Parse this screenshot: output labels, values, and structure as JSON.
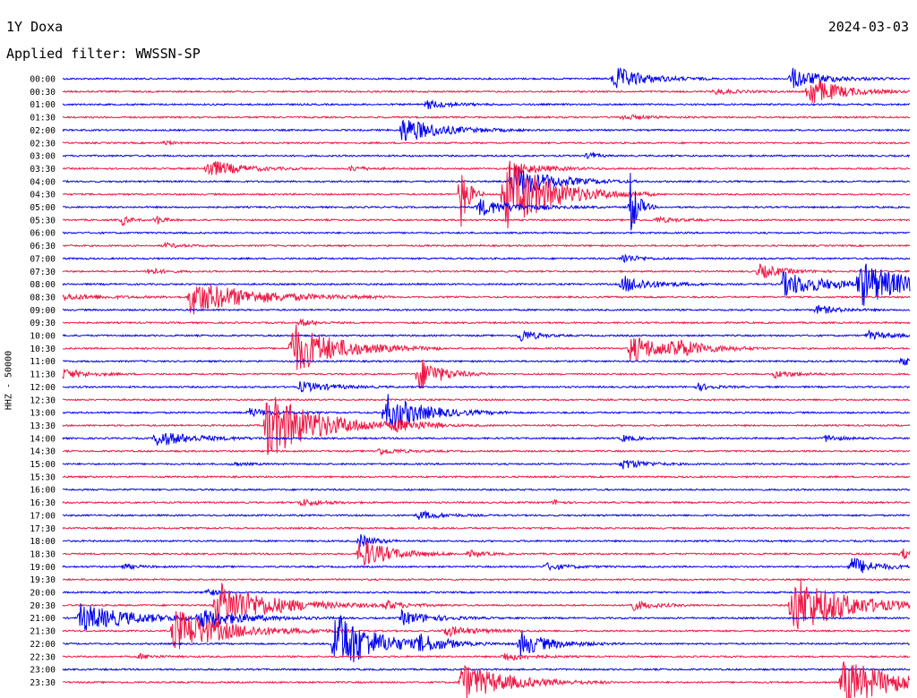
{
  "header": {
    "station": "1Y Doxa",
    "date": "2024-03-03",
    "filter": "Applied filter: WWSSN-SP"
  },
  "colors": {
    "even_trace": "#0000ee",
    "odd_trace": "#ee1744",
    "background": "#ffffff"
  },
  "chart_data": {
    "type": "line",
    "ylabel": "HHZ - 50000",
    "row_labels": [
      "00:00",
      "00:30",
      "01:00",
      "01:30",
      "02:00",
      "02:30",
      "03:00",
      "03:30",
      "04:00",
      "04:30",
      "05:00",
      "05:30",
      "06:00",
      "06:30",
      "07:00",
      "07:30",
      "08:00",
      "08:30",
      "09:00",
      "09:30",
      "10:00",
      "10:30",
      "11:00",
      "11:30",
      "12:00",
      "12:30",
      "13:00",
      "13:30",
      "14:00",
      "14:30",
      "15:00",
      "15:30",
      "16:00",
      "16:30",
      "17:00",
      "17:30",
      "18:00",
      "18:30",
      "19:00",
      "19:30",
      "20:00",
      "20:30",
      "21:00",
      "21:30",
      "22:00",
      "22:30",
      "23:00",
      "23:30"
    ],
    "trace_colors": [
      "#0000ee",
      "#ee1744"
    ],
    "events": [
      {
        "row": 0,
        "x": 0.65,
        "amp": 14,
        "dur": 0.04
      },
      {
        "row": 0,
        "x": 0.86,
        "amp": 12,
        "dur": 0.04
      },
      {
        "row": 1,
        "x": 0.88,
        "amp": 18,
        "dur": 0.04
      },
      {
        "row": 1,
        "x": 0.77,
        "amp": 3,
        "dur": 0.03
      },
      {
        "row": 2,
        "x": 0.43,
        "amp": 5,
        "dur": 0.03
      },
      {
        "row": 3,
        "x": 0.66,
        "amp": 3,
        "dur": 0.03
      },
      {
        "row": 4,
        "x": 0.4,
        "amp": 15,
        "dur": 0.05
      },
      {
        "row": 5,
        "x": 0.12,
        "amp": 3,
        "dur": 0.01
      },
      {
        "row": 6,
        "x": 0.62,
        "amp": 6,
        "dur": 0.01
      },
      {
        "row": 7,
        "x": 0.17,
        "amp": 11,
        "dur": 0.04
      },
      {
        "row": 7,
        "x": 0.34,
        "amp": 3,
        "dur": 0.02
      },
      {
        "row": 7,
        "x": 0.54,
        "amp": 6,
        "dur": 0.04
      },
      {
        "row": 8,
        "x": 0.53,
        "amp": 20,
        "dur": 0.05
      },
      {
        "row": 9,
        "x": 0.47,
        "amp": 40,
        "dur": 0.01
      },
      {
        "row": 9,
        "x": 0.52,
        "amp": 45,
        "dur": 0.06
      },
      {
        "row": 10,
        "x": 0.49,
        "amp": 10,
        "dur": 0.05
      },
      {
        "row": 10,
        "x": 0.67,
        "amp": 40,
        "dur": 0.01
      },
      {
        "row": 11,
        "x": 0.07,
        "amp": 6,
        "dur": 0.01
      },
      {
        "row": 11,
        "x": 0.11,
        "amp": 6,
        "dur": 0.01
      },
      {
        "row": 11,
        "x": 0.7,
        "amp": 3,
        "dur": 0.03
      },
      {
        "row": 13,
        "x": 0.12,
        "amp": 3,
        "dur": 0.02
      },
      {
        "row": 14,
        "x": 0.66,
        "amp": 6,
        "dur": 0.02
      },
      {
        "row": 15,
        "x": 0.82,
        "amp": 9,
        "dur": 0.03
      },
      {
        "row": 15,
        "x": 0.1,
        "amp": 4,
        "dur": 0.02
      },
      {
        "row": 16,
        "x": 0.66,
        "amp": 10,
        "dur": 0.04
      },
      {
        "row": 16,
        "x": 0.85,
        "amp": 14,
        "dur": 0.06
      },
      {
        "row": 16,
        "x": 0.94,
        "amp": 25,
        "dur": 0.06
      },
      {
        "row": 17,
        "x": 0.15,
        "amp": 20,
        "dur": 0.08
      },
      {
        "row": 17,
        "x": 0.0,
        "amp": 3,
        "dur": 0.06
      },
      {
        "row": 18,
        "x": 0.89,
        "amp": 5,
        "dur": 0.03
      },
      {
        "row": 19,
        "x": 0.28,
        "amp": 4,
        "dur": 0.02
      },
      {
        "row": 20,
        "x": 0.54,
        "amp": 8,
        "dur": 0.02
      },
      {
        "row": 20,
        "x": 0.95,
        "amp": 5,
        "dur": 0.03
      },
      {
        "row": 21,
        "x": 0.27,
        "amp": 30,
        "dur": 0.06
      },
      {
        "row": 21,
        "x": 0.67,
        "amp": 16,
        "dur": 0.05
      },
      {
        "row": 21,
        "x": 0.72,
        "amp": 8,
        "dur": 0.04
      },
      {
        "row": 22,
        "x": 0.99,
        "amp": 8,
        "dur": 0.01
      },
      {
        "row": 23,
        "x": 0.0,
        "amp": 6,
        "dur": 0.03
      },
      {
        "row": 23,
        "x": 0.42,
        "amp": 20,
        "dur": 0.03
      },
      {
        "row": 23,
        "x": 0.84,
        "amp": 4,
        "dur": 0.03
      },
      {
        "row": 24,
        "x": 0.28,
        "amp": 6,
        "dur": 0.04
      },
      {
        "row": 24,
        "x": 0.75,
        "amp": 4,
        "dur": 0.02
      },
      {
        "row": 26,
        "x": 0.22,
        "amp": 5,
        "dur": 0.03
      },
      {
        "row": 26,
        "x": 0.38,
        "amp": 22,
        "dur": 0.05
      },
      {
        "row": 27,
        "x": 0.24,
        "amp": 38,
        "dur": 0.07
      },
      {
        "row": 27,
        "x": 0.39,
        "amp": 5,
        "dur": 0.04
      },
      {
        "row": 28,
        "x": 0.11,
        "amp": 9,
        "dur": 0.05
      },
      {
        "row": 28,
        "x": 0.66,
        "amp": 4,
        "dur": 0.02
      },
      {
        "row": 28,
        "x": 0.9,
        "amp": 4,
        "dur": 0.02
      },
      {
        "row": 29,
        "x": 0.37,
        "amp": 4,
        "dur": 0.03
      },
      {
        "row": 30,
        "x": 0.66,
        "amp": 6,
        "dur": 0.03
      },
      {
        "row": 30,
        "x": 0.2,
        "amp": 2,
        "dur": 0.02
      },
      {
        "row": 33,
        "x": 0.28,
        "amp": 4,
        "dur": 0.03
      },
      {
        "row": 33,
        "x": 0.58,
        "amp": 3,
        "dur": 0.01
      },
      {
        "row": 34,
        "x": 0.42,
        "amp": 5,
        "dur": 0.03
      },
      {
        "row": 36,
        "x": 0.35,
        "amp": 8,
        "dur": 0.02
      },
      {
        "row": 37,
        "x": 0.35,
        "amp": 18,
        "dur": 0.04
      },
      {
        "row": 37,
        "x": 0.48,
        "amp": 4,
        "dur": 0.02
      },
      {
        "row": 37,
        "x": 0.99,
        "amp": 6,
        "dur": 0.02
      },
      {
        "row": 38,
        "x": 0.93,
        "amp": 12,
        "dur": 0.03
      },
      {
        "row": 38,
        "x": 0.07,
        "amp": 3,
        "dur": 0.02
      },
      {
        "row": 38,
        "x": 0.57,
        "amp": 4,
        "dur": 0.03
      },
      {
        "row": 40,
        "x": 0.17,
        "amp": 6,
        "dur": 0.01
      },
      {
        "row": 41,
        "x": 0.18,
        "amp": 28,
        "dur": 0.07
      },
      {
        "row": 41,
        "x": 0.86,
        "amp": 35,
        "dur": 0.07
      },
      {
        "row": 41,
        "x": 0.67,
        "amp": 6,
        "dur": 0.03
      },
      {
        "row": 41,
        "x": 0.38,
        "amp": 5,
        "dur": 0.03
      },
      {
        "row": 42,
        "x": 0.02,
        "amp": 16,
        "dur": 0.07
      },
      {
        "row": 42,
        "x": 0.16,
        "amp": 10,
        "dur": 0.06
      },
      {
        "row": 42,
        "x": 0.4,
        "amp": 8,
        "dur": 0.04
      },
      {
        "row": 43,
        "x": 0.13,
        "amp": 25,
        "dur": 0.07
      },
      {
        "row": 43,
        "x": 0.45,
        "amp": 6,
        "dur": 0.04
      },
      {
        "row": 44,
        "x": 0.32,
        "amp": 40,
        "dur": 0.05
      },
      {
        "row": 44,
        "x": 0.42,
        "amp": 8,
        "dur": 0.04
      },
      {
        "row": 44,
        "x": 0.54,
        "amp": 14,
        "dur": 0.04
      },
      {
        "row": 45,
        "x": 0.52,
        "amp": 5,
        "dur": 0.03
      },
      {
        "row": 45,
        "x": 0.09,
        "amp": 3,
        "dur": 0.02
      },
      {
        "row": 47,
        "x": 0.47,
        "amp": 22,
        "dur": 0.06
      },
      {
        "row": 47,
        "x": 0.92,
        "amp": 28,
        "dur": 0.07
      }
    ]
  }
}
